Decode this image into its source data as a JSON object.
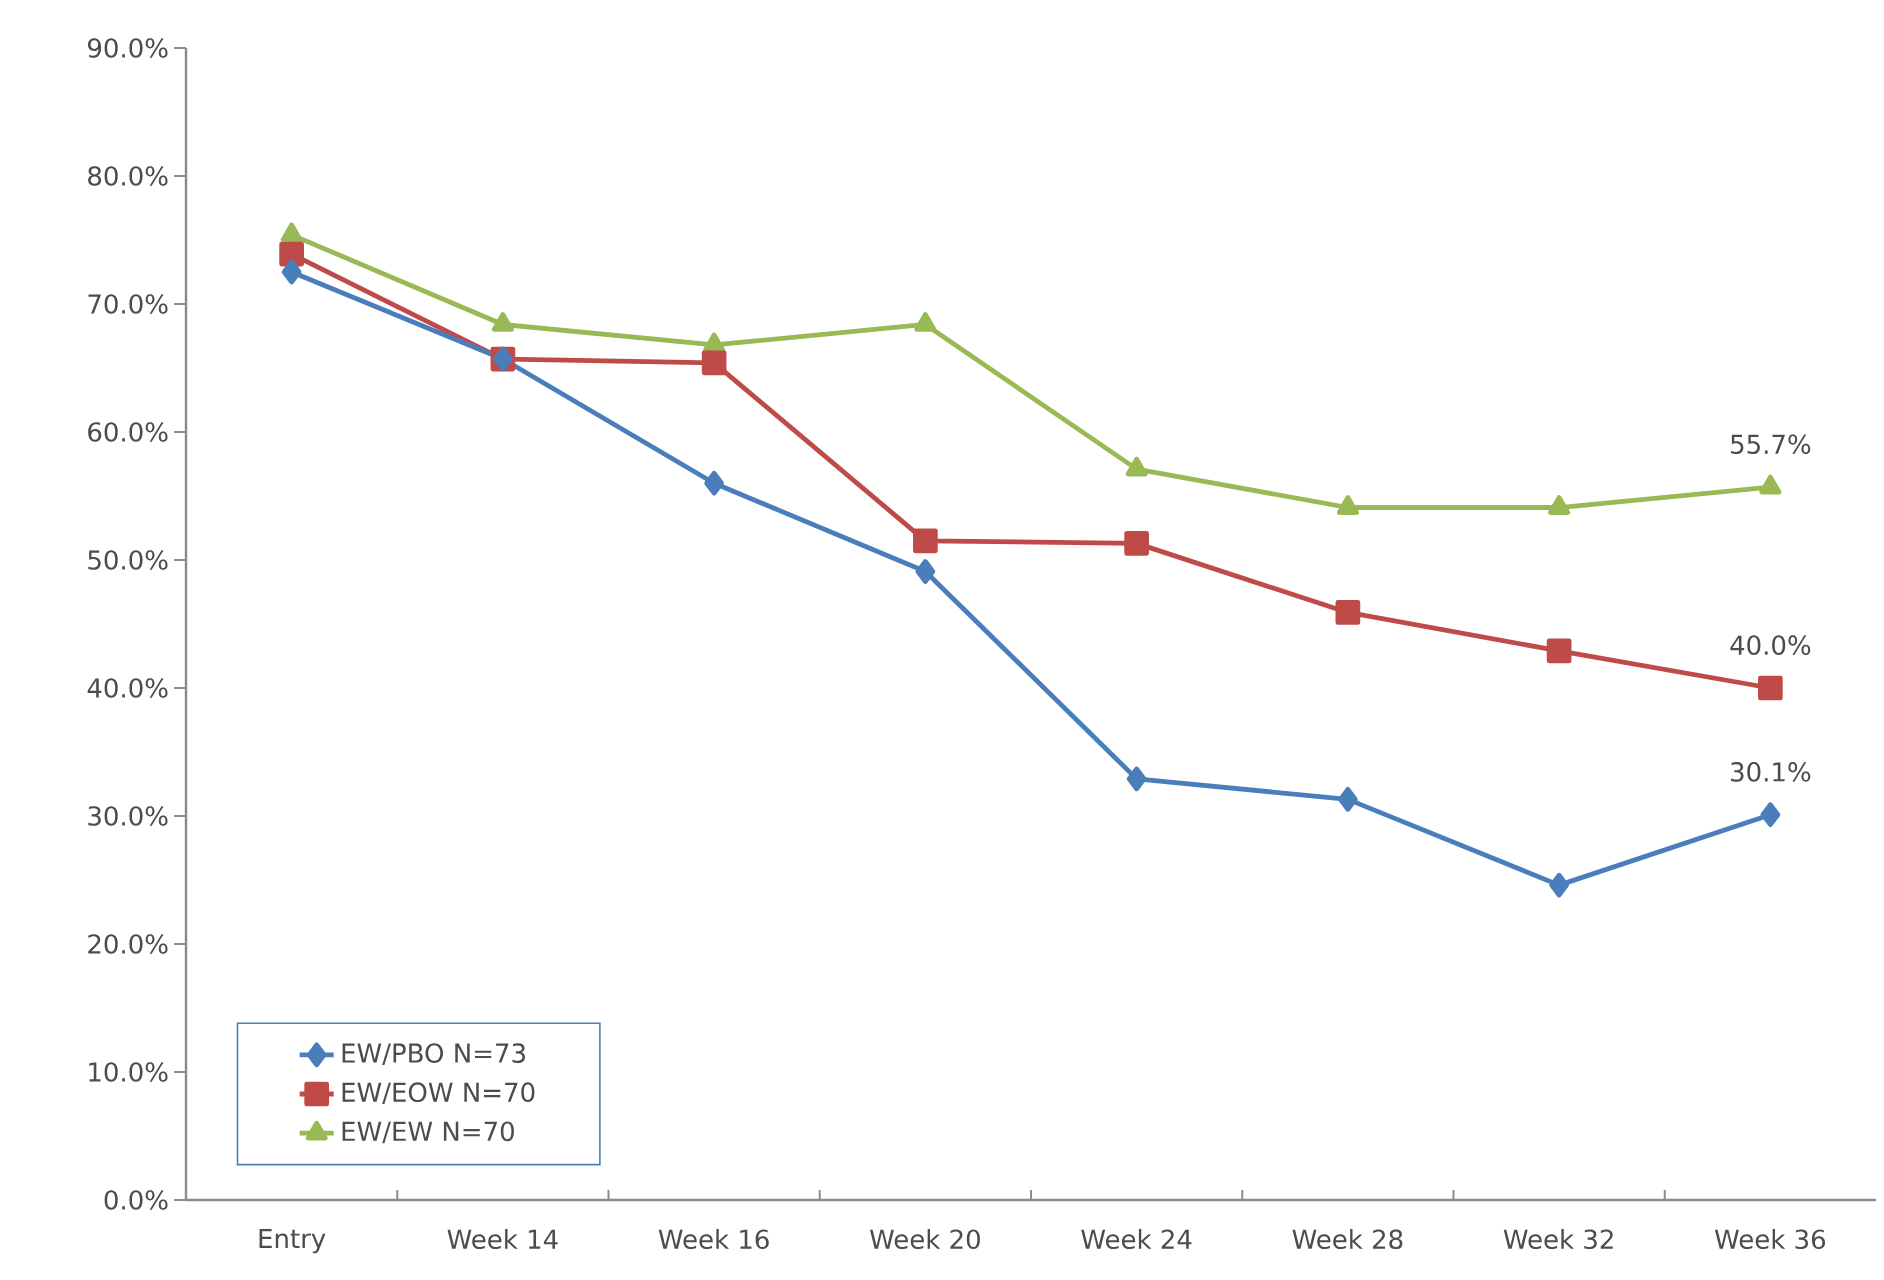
{
  "chart_data": {
    "type": "line",
    "categories": [
      "Entry",
      "Week 14",
      "Week 16",
      "Week 20",
      "Week 24",
      "Week 28",
      "Week 32",
      "Week 36"
    ],
    "series": [
      {
        "name": "EW/PBO N=73",
        "color": "#4a7ebb",
        "marker": "diamond",
        "values": [
          72.5,
          65.7,
          56.0,
          49.1,
          32.9,
          31.3,
          24.6,
          30.1
        ],
        "value_labels": [
          null,
          null,
          null,
          null,
          null,
          null,
          null,
          "30.1%"
        ]
      },
      {
        "name": "EW/EOW N=70",
        "color": "#be4b48",
        "marker": "square",
        "values": [
          73.9,
          65.7,
          65.4,
          51.5,
          51.3,
          45.9,
          42.9,
          40.0
        ],
        "value_labels": [
          null,
          null,
          null,
          null,
          null,
          null,
          null,
          "40.0%"
        ]
      },
      {
        "name": "EW/EW N=70",
        "color": "#98b954",
        "marker": "triangle",
        "values": [
          75.4,
          68.4,
          66.8,
          68.4,
          57.1,
          54.1,
          54.1,
          55.7
        ],
        "value_labels": [
          null,
          null,
          null,
          null,
          null,
          null,
          null,
          "55.7%"
        ]
      }
    ],
    "ylim": [
      0,
      90
    ],
    "yticks": [
      {
        "value": 0,
        "label": "0.0%"
      },
      {
        "value": 10,
        "label": "10.0%"
      },
      {
        "value": 20,
        "label": "20.0%"
      },
      {
        "value": 30,
        "label": "30.0%"
      },
      {
        "value": 40,
        "label": "40.0%"
      },
      {
        "value": 50,
        "label": "50.0%"
      },
      {
        "value": 60,
        "label": "60.0%"
      },
      {
        "value": 70,
        "label": "70.0%"
      },
      {
        "value": 80,
        "label": "80.0%"
      },
      {
        "value": 90,
        "label": "90.0%"
      }
    ],
    "grid": false,
    "legend": "bottom left"
  }
}
